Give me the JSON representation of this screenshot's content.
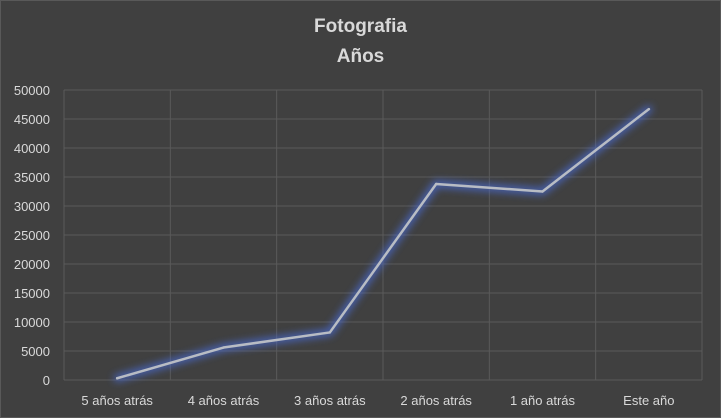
{
  "chart_data": {
    "type": "line",
    "title": "Fotografia",
    "subtitle": "Años",
    "categories": [
      "5 años atrás",
      "4 años atrás",
      "3 años atrás",
      "2 años atrás",
      "1 año atrás",
      "Este año"
    ],
    "series": [
      {
        "values": [
          300,
          5600,
          8200,
          33800,
          32500,
          46700
        ]
      }
    ],
    "ylim": [
      0,
      50000
    ],
    "yticks": [
      0,
      5000,
      10000,
      15000,
      20000,
      25000,
      30000,
      35000,
      40000,
      45000,
      50000
    ],
    "grid": true,
    "legend": "none",
    "colors": {
      "background": "#404040",
      "grid": "#5a5a5a",
      "line": "#b8bcc4",
      "glow": "#4a6ad0",
      "text": "#d9d9d9"
    }
  }
}
